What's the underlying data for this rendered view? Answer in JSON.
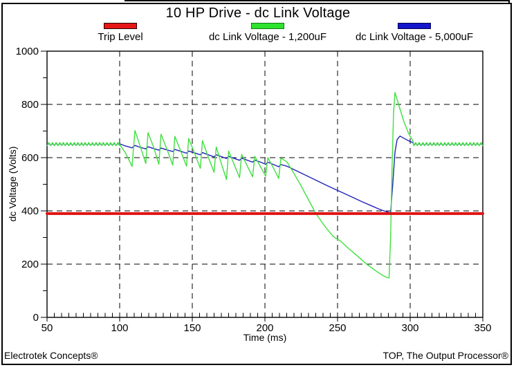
{
  "window": {
    "footer_left": "Electrotek Concepts®",
    "footer_right": "TOP, The Output Processor®"
  },
  "legend": {
    "items": [
      {
        "label": "Trip Level",
        "fill": "#e81717",
        "border": "#250000"
      },
      {
        "label": "dc Link Voltage - 1,200uF",
        "fill": "#2ee32e",
        "border": "#0b7a0b"
      },
      {
        "label": "dc Link Voltage - 5,000uF",
        "fill": "#1515cc",
        "border": "#000055"
      }
    ]
  },
  "chart_data": {
    "type": "line",
    "title": "10 HP Drive - dc Link Voltage",
    "xlabel": "Time (ms)",
    "ylabel": "dc Voltage (Volts)",
    "xlim": [
      50,
      350
    ],
    "ylim": [
      0,
      1000
    ],
    "x_major_ticks": [
      50,
      100,
      150,
      200,
      250,
      300,
      350
    ],
    "x_minor_step": 5,
    "y_major_ticks": [
      0,
      200,
      400,
      600,
      800,
      1000
    ],
    "y_minor_step": 100,
    "grid": "dashed black gridlines at interior major ticks",
    "legend_position": "top",
    "trip_level_volts": 390,
    "series": [
      {
        "id": "dc-link-voltage-5000uf",
        "name": "dc Link Voltage - 5,000uF",
        "color": "#2222bb",
        "width": 1.4,
        "segments": [
          {
            "type": "ripple",
            "t0": 50,
            "t1": 100,
            "base": 650,
            "amp": 4,
            "period": 2.5
          },
          {
            "type": "points",
            "points": [
              [
                100,
                652
              ],
              [
                104,
                644
              ],
              [
                108.5,
                637
              ],
              [
                110.5,
                646
              ],
              [
                114,
                639
              ],
              [
                118,
                633
              ],
              [
                119.5,
                641
              ],
              [
                123.5,
                634
              ],
              [
                127,
                628
              ],
              [
                128.5,
                636
              ],
              [
                132.5,
                629
              ],
              [
                136.5,
                623
              ],
              [
                138,
                631
              ],
              [
                142,
                624
              ],
              [
                146,
                617
              ],
              [
                147.5,
                625
              ],
              [
                151.5,
                618
              ],
              [
                155.5,
                611
              ],
              [
                157,
                619
              ],
              [
                161,
                611
              ],
              [
                165,
                603
              ],
              [
                166.5,
                611
              ],
              [
                170,
                604
              ],
              [
                173.5,
                597
              ],
              [
                175,
                605
              ],
              [
                179,
                597
              ],
              [
                182.5,
                590
              ],
              [
                184,
                598
              ],
              [
                188,
                590
              ],
              [
                191.5,
                583
              ],
              [
                193,
                591
              ],
              [
                197,
                583
              ],
              [
                200.5,
                575
              ],
              [
                202,
                583
              ],
              [
                206,
                574
              ],
              [
                209.5,
                566
              ],
              [
                211,
                574
              ],
              [
                215,
                568
              ],
              [
                220,
                555
              ],
              [
                228,
                534
              ],
              [
                236,
                513
              ],
              [
                244,
                492
              ],
              [
                252,
                472
              ],
              [
                260,
                452
              ],
              [
                267,
                434
              ],
              [
                273,
                420
              ],
              [
                278,
                408
              ],
              [
                282,
                400
              ],
              [
                285,
                395
              ],
              [
                286.5,
                393
              ],
              [
                288,
                500
              ],
              [
                289.5,
                620
              ],
              [
                291,
                668
              ],
              [
                293,
                681
              ],
              [
                296,
                672
              ],
              [
                299,
                663
              ],
              [
                302,
                656
              ]
            ]
          },
          {
            "type": "ripple",
            "t0": 302.5,
            "t1": 350,
            "base": 650,
            "amp": 4,
            "period": 2.5
          }
        ]
      },
      {
        "id": "dc-link-voltage-1200uf",
        "name": "dc Link Voltage - 1,200uF",
        "color": "#3fdf3f",
        "width": 1.4,
        "segments": [
          {
            "type": "ripple",
            "t0": 50,
            "t1": 100,
            "base": 651,
            "amp": 6,
            "period": 2.5
          },
          {
            "type": "points",
            "points": [
              [
                100,
                650
              ],
              [
                104,
                618
              ],
              [
                108.5,
                567
              ],
              [
                110.5,
                702
              ],
              [
                114,
                645
              ],
              [
                118,
                578
              ],
              [
                119.5,
                694
              ],
              [
                123.5,
                638
              ],
              [
                127,
                575
              ],
              [
                128.5,
                688
              ],
              [
                132.5,
                632
              ],
              [
                136.5,
                572
              ],
              [
                138,
                680
              ],
              [
                142,
                625
              ],
              [
                146,
                568
              ],
              [
                147.5,
                672
              ],
              [
                151.5,
                618
              ],
              [
                155.5,
                560
              ],
              [
                157,
                664
              ],
              [
                161,
                602
              ],
              [
                165,
                545
              ],
              [
                166.5,
                640
              ],
              [
                170,
                578
              ],
              [
                173.5,
                518
              ],
              [
                175,
                625
              ],
              [
                179,
                572
              ],
              [
                182.5,
                525
              ],
              [
                184,
                612
              ],
              [
                188,
                567
              ],
              [
                191.5,
                528
              ],
              [
                193,
                605
              ],
              [
                197,
                566
              ],
              [
                200.5,
                530
              ],
              [
                202,
                600
              ],
              [
                206,
                560
              ],
              [
                209.5,
                522
              ],
              [
                211,
                598
              ],
              [
                215,
                585
              ],
              [
                219,
                550
              ],
              [
                224,
                503
              ],
              [
                229,
                452
              ],
              [
                235,
                391
              ],
              [
                241,
                344
              ],
              [
                247,
                304
              ],
              [
                252,
                287
              ],
              [
                258,
                257
              ],
              [
                264,
                229
              ],
              [
                270,
                200
              ],
              [
                276,
                176
              ],
              [
                281,
                158
              ],
              [
                284,
                150
              ],
              [
                285.5,
                148
              ],
              [
                286.5,
                300
              ],
              [
                287.5,
                560
              ],
              [
                288.5,
                762
              ],
              [
                289.5,
                845
              ],
              [
                292,
                800
              ],
              [
                296,
                730
              ],
              [
                299,
                690
              ],
              [
                302,
                662
              ]
            ]
          },
          {
            "type": "ripple",
            "t0": 302.5,
            "t1": 350,
            "base": 651,
            "amp": 6,
            "period": 2.5
          }
        ]
      },
      {
        "id": "trip-level",
        "name": "Trip Level",
        "color": "#e01212",
        "width": 4,
        "segments": [
          {
            "type": "points",
            "points": [
              [
                50,
                390
              ],
              [
                350,
                390
              ]
            ]
          }
        ]
      }
    ]
  }
}
